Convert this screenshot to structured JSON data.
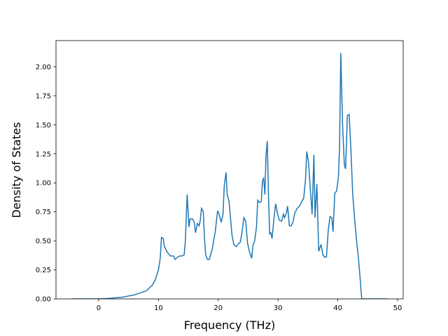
{
  "chart_data": {
    "type": "line",
    "xlabel": "Frequency (THz)",
    "ylabel": "Density of States",
    "x": [
      -4.5,
      0,
      2,
      4,
      6,
      8,
      9,
      9.5,
      10,
      10.3,
      10.5,
      10.8,
      11,
      11.5,
      12,
      12.5,
      12.8,
      13.2,
      13.6,
      14,
      14.3,
      14.5,
      14.8,
      15.1,
      15.3,
      15.7,
      16,
      16.2,
      16.5,
      16.8,
      17,
      17.2,
      17.5,
      17.7,
      17.9,
      18.2,
      18.5,
      19,
      19.5,
      19.9,
      20.2,
      20.5,
      20.8,
      21,
      21.3,
      21.5,
      21.8,
      22,
      22.3,
      22.6,
      23,
      23.3,
      23.7,
      24,
      24.3,
      24.6,
      24.9,
      25.2,
      25.6,
      25.8,
      26.1,
      26.4,
      26.6,
      26.9,
      27.2,
      27.4,
      27.6,
      27.8,
      28,
      28.2,
      28.4,
      28.6,
      28.8,
      29,
      29.3,
      29.6,
      29.9,
      30.2,
      30.6,
      30.9,
      31.1,
      31.4,
      31.6,
      31.9,
      32.2,
      32.5,
      32.8,
      33.2,
      33.6,
      34,
      34.3,
      34.6,
      34.8,
      35.1,
      35.4,
      35.7,
      36,
      36.2,
      36.5,
      36.8,
      37.2,
      37.5,
      37.8,
      38.1,
      38.4,
      38.7,
      39,
      39.2,
      39.5,
      39.8,
      40.1,
      40.3,
      40.5,
      40.8,
      41.1,
      41.3,
      41.6,
      41.9,
      42.2,
      42.5,
      42.8,
      43.1,
      43.4,
      43.7,
      44,
      46,
      48.3
    ],
    "series": [
      {
        "color": "#1f77b4",
        "values": [
          0,
          0,
          0.005,
          0.015,
          0.035,
          0.07,
          0.12,
          0.17,
          0.25,
          0.35,
          0.53,
          0.52,
          0.45,
          0.4,
          0.37,
          0.37,
          0.34,
          0.36,
          0.37,
          0.37,
          0.38,
          0.5,
          0.9,
          0.62,
          0.69,
          0.69,
          0.66,
          0.57,
          0.65,
          0.63,
          0.68,
          0.78,
          0.75,
          0.52,
          0.38,
          0.34,
          0.34,
          0.43,
          0.58,
          0.76,
          0.72,
          0.66,
          0.73,
          0.97,
          1.09,
          0.9,
          0.84,
          0.73,
          0.55,
          0.47,
          0.45,
          0.47,
          0.49,
          0.58,
          0.7,
          0.67,
          0.48,
          0.41,
          0.35,
          0.46,
          0.5,
          0.62,
          0.85,
          0.83,
          0.84,
          1.02,
          1.04,
          0.9,
          1.24,
          1.36,
          0.9,
          0.56,
          0.57,
          0.52,
          0.68,
          0.82,
          0.74,
          0.68,
          0.67,
          0.73,
          0.7,
          0.74,
          0.8,
          0.63,
          0.63,
          0.66,
          0.74,
          0.78,
          0.8,
          0.84,
          0.87,
          1.03,
          1.27,
          1.18,
          0.95,
          0.73,
          1.24,
          0.7,
          0.99,
          0.41,
          0.47,
          0.38,
          0.36,
          0.36,
          0.59,
          0.71,
          0.7,
          0.58,
          0.91,
          0.93,
          1.05,
          1.32,
          2.12,
          1.5,
          1.15,
          1.12,
          1.58,
          1.59,
          1.28,
          0.9,
          0.7,
          0.52,
          0.38,
          0.2,
          0,
          0,
          0
        ]
      }
    ],
    "xlim": [
      -7.14,
      50.94
    ],
    "xticks": [
      0,
      10,
      20,
      30,
      40,
      50
    ],
    "ylim": [
      0,
      2.226
    ],
    "yticks": [
      {
        "value": 0,
        "label": "0.00"
      },
      {
        "value": 0.25,
        "label": "0.25"
      },
      {
        "value": 0.5,
        "label": "0.50"
      },
      {
        "value": 0.75,
        "label": "0.75"
      },
      {
        "value": 1,
        "label": "1.00"
      },
      {
        "value": 1.25,
        "label": "1.25"
      },
      {
        "value": 1.5,
        "label": "1.50"
      },
      {
        "value": 1.75,
        "label": "1.75"
      },
      {
        "value": 2,
        "label": "2.00"
      }
    ],
    "grid": false
  }
}
